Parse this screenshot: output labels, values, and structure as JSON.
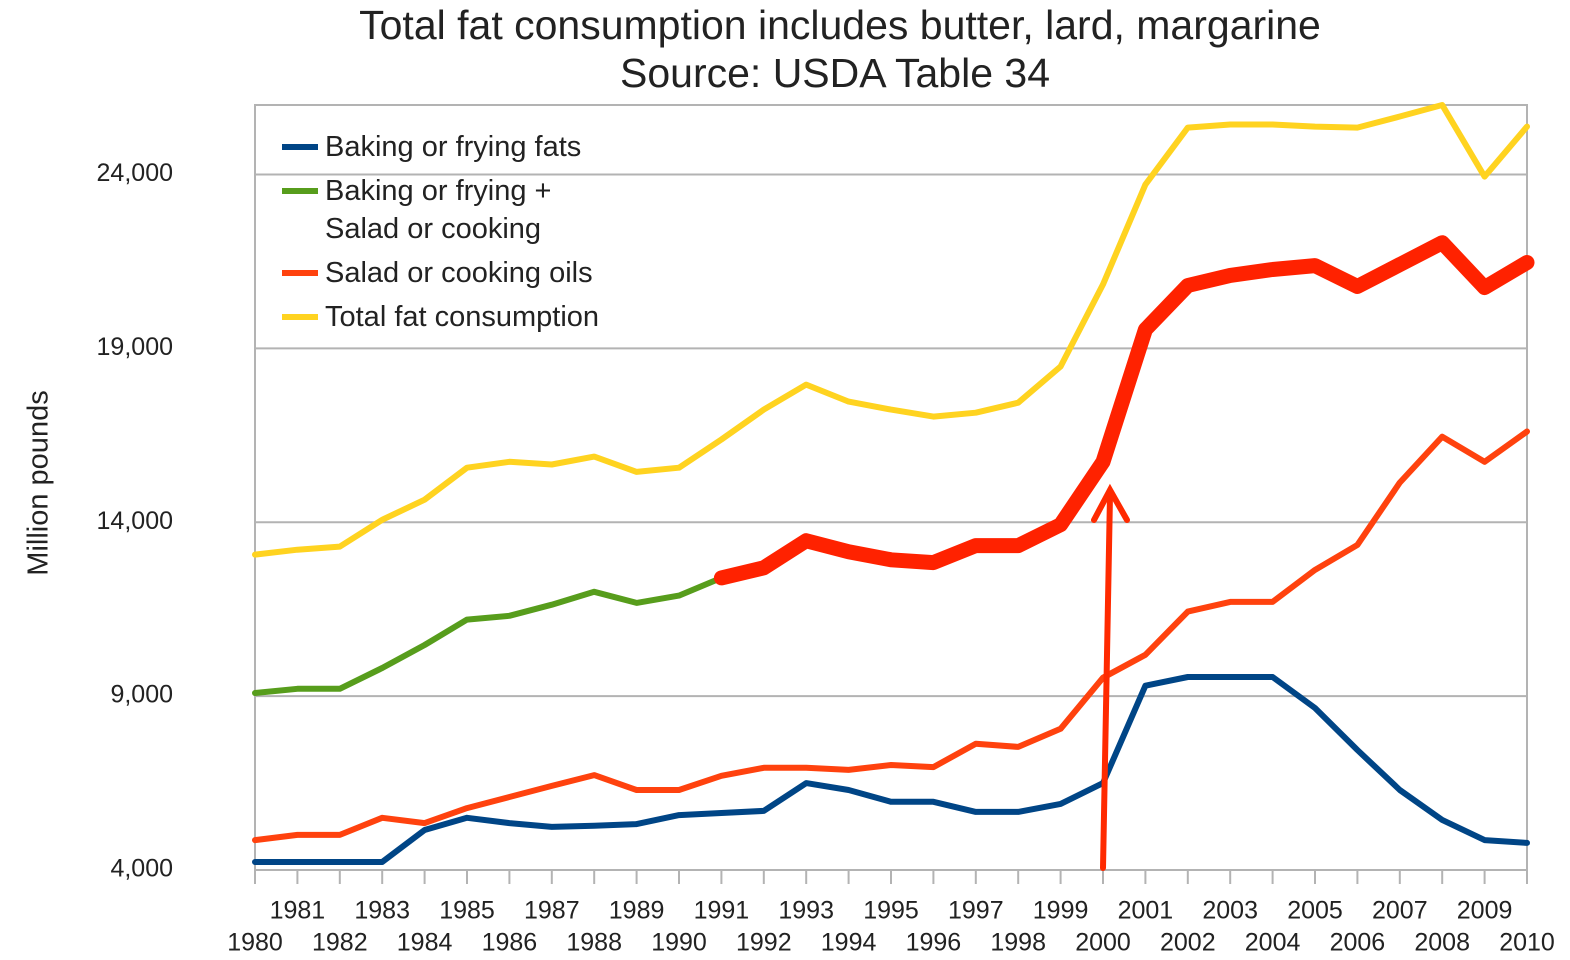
{
  "chart_data": {
    "type": "line",
    "title": "Total fat consumption includes butter, lard, margarine",
    "subtitle": "Source: USDA Table 34",
    "y_label": "Million pounds",
    "x": [
      1980,
      1981,
      1982,
      1983,
      1984,
      1985,
      1986,
      1987,
      1988,
      1989,
      1990,
      1991,
      1992,
      1993,
      1994,
      1995,
      1996,
      1997,
      1998,
      1999,
      2000,
      2001,
      2002,
      2003,
      2004,
      2005,
      2006,
      2007,
      2008,
      2009,
      2010
    ],
    "xlim": [
      1980,
      2010
    ],
    "xticks": [
      1980,
      1981,
      1982,
      1983,
      1984,
      1985,
      1986,
      1987,
      1988,
      1989,
      1990,
      1991,
      1992,
      1993,
      1994,
      1995,
      1996,
      1997,
      1998,
      1999,
      2000,
      2001,
      2002,
      2003,
      2004,
      2005,
      2006,
      2007,
      2008,
      2009,
      2010
    ],
    "ylim": [
      4000,
      26000
    ],
    "yticks": [
      {
        "value": 4000,
        "label": "4,000"
      },
      {
        "value": 9000,
        "label": "9,000"
      },
      {
        "value": 14000,
        "label": "14,000"
      },
      {
        "value": 19000,
        "label": "19,000"
      },
      {
        "value": 24000,
        "label": "24,000"
      }
    ],
    "grid": true,
    "legend": "top-left",
    "series": [
      {
        "name": "Baking or frying fats",
        "color": "#004586",
        "values": [
          4230,
          4230,
          4230,
          4230,
          5150,
          5500,
          5350,
          5240,
          5270,
          5320,
          5580,
          5640,
          5700,
          6500,
          6300,
          5960,
          5960,
          5670,
          5670,
          5900,
          6500,
          9300,
          9550,
          9550,
          9550,
          8660,
          7450,
          6300,
          5440,
          4860,
          4780
        ]
      },
      {
        "name": "Baking or frying +\nSalad or cooking",
        "color": "#579d1c",
        "values": [
          9090,
          9210,
          9210,
          9810,
          10470,
          11200,
          11310,
          11630,
          12000,
          11680,
          11890,
          12400,
          12690,
          13470,
          13150,
          12920,
          12840,
          13330,
          13330,
          13930,
          15740,
          19540,
          20810,
          21100,
          21270,
          21380,
          20780,
          21410,
          22040,
          20750,
          21470
        ]
      },
      {
        "name": "Salad or cooking oils",
        "color": "#ff420e",
        "values": [
          4860,
          5010,
          5010,
          5500,
          5350,
          5780,
          6100,
          6420,
          6730,
          6300,
          6300,
          6710,
          6940,
          6940,
          6880,
          7020,
          6960,
          7630,
          7540,
          8060,
          9530,
          10190,
          11430,
          11710,
          11710,
          12630,
          13350,
          15140,
          16460,
          15740,
          16610
        ]
      },
      {
        "name": "Total fat consumption",
        "color": "#ffd320",
        "values": [
          13070,
          13210,
          13300,
          14070,
          14650,
          15570,
          15740,
          15660,
          15890,
          15450,
          15570,
          16380,
          17240,
          17960,
          17470,
          17240,
          17040,
          17150,
          17440,
          18480,
          20840,
          23710,
          25350,
          25440,
          25440,
          25380,
          25350,
          25670,
          26000,
          23940,
          25380
        ]
      }
    ],
    "highlight": {
      "series": 1,
      "from": 1991,
      "color": "#ff2200"
    }
  }
}
